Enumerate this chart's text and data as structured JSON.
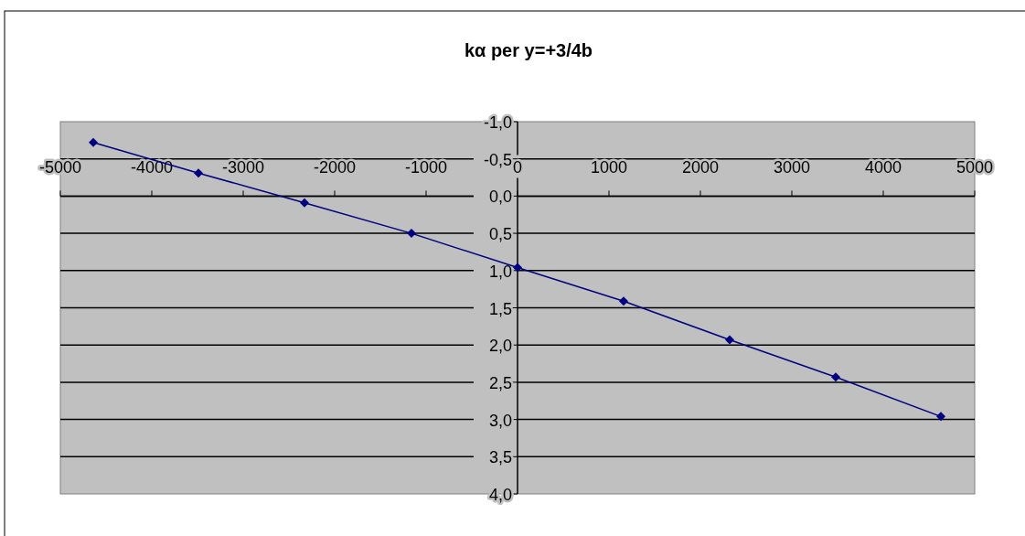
{
  "chart_data": {
    "type": "line",
    "title": "kα per y=+3/4b",
    "x": [
      -4640,
      -3490,
      -2330,
      -1160,
      0,
      1160,
      2320,
      3480,
      4630
    ],
    "series": [
      {
        "color": "#000080",
        "values": [
          -0.72,
          -0.31,
          0.09,
          0.5,
          0.96,
          1.41,
          1.93,
          2.43,
          2.96
        ]
      }
    ],
    "xlim": [
      -5000,
      5000
    ],
    "xticks": [
      -5000,
      -4000,
      -3000,
      -2000,
      -1000,
      0,
      1000,
      2000,
      3000,
      4000,
      5000
    ],
    "ylim": [
      4.0,
      -1.0
    ],
    "yticks": [
      {
        "value": -1.0,
        "label": "-1,0"
      },
      {
        "value": -0.5,
        "label": "-0,5"
      },
      {
        "value": 0,
        "label": "0,0"
      },
      {
        "value": 0.5,
        "label": "0,5"
      },
      {
        "value": 1.0,
        "label": "1,0"
      },
      {
        "value": 1.5,
        "label": "1,5"
      },
      {
        "value": 2.0,
        "label": "2,0"
      },
      {
        "value": 2.5,
        "label": "2,5"
      },
      {
        "value": 3.0,
        "label": "3,0"
      },
      {
        "value": 3.5,
        "label": "3,5"
      },
      {
        "value": 4.0,
        "label": "4,0"
      }
    ],
    "grid": "y",
    "marker": "diamond",
    "line_style": "solid"
  }
}
